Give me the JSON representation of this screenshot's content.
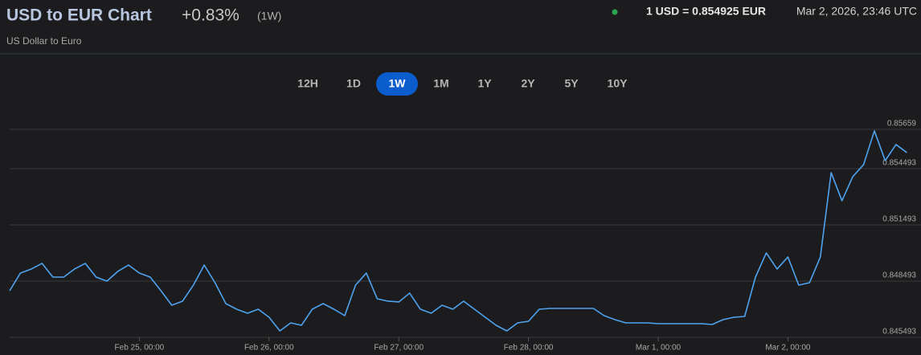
{
  "header": {
    "title": "USD to EUR Chart",
    "change": "+0.83%",
    "period": "(1W)",
    "subtitle": "US Dollar to Euro",
    "rate": "1 USD = 0.854925 EUR",
    "timestamp": "Mar 2, 2026, 23:46 UTC"
  },
  "ranges": [
    "12H",
    "1D",
    "1W",
    "1M",
    "1Y",
    "2Y",
    "5Y",
    "10Y"
  ],
  "selected_range": "1W",
  "chart_data": {
    "type": "line",
    "color": "#4ea3f0",
    "grid": true,
    "categories": [
      null,
      null,
      null,
      null,
      null,
      null,
      null,
      null,
      null,
      null,
      null,
      null,
      "Feb 25, 00:00",
      null,
      null,
      null,
      null,
      null,
      null,
      null,
      null,
      null,
      null,
      null,
      "Feb 26, 00:00",
      null,
      null,
      null,
      null,
      null,
      null,
      null,
      null,
      null,
      null,
      null,
      "Feb 27, 00:00",
      null,
      null,
      null,
      null,
      null,
      null,
      null,
      null,
      null,
      null,
      null,
      "Feb 28, 00:00",
      null,
      null,
      null,
      null,
      null,
      null,
      null,
      null,
      null,
      null,
      null,
      "Mar 1, 00:00",
      null,
      null,
      null,
      null,
      null,
      null,
      null,
      null,
      null,
      null,
      null,
      "Mar 2, 00:00",
      null,
      null,
      null,
      null,
      null,
      null,
      null,
      null,
      null,
      null,
      null
    ],
    "values": [
      0.847979,
      0.848922,
      0.849136,
      0.849436,
      0.848707,
      0.848707,
      0.849136,
      0.849436,
      0.848707,
      0.848493,
      0.849007,
      0.84935,
      0.848922,
      0.848707,
      0.847979,
      0.847207,
      0.847422,
      0.848279,
      0.84935,
      0.848407,
      0.847293,
      0.846993,
      0.846779,
      0.846993,
      0.846564,
      0.845836,
      0.846264,
      0.846136,
      0.846993,
      0.847293,
      0.846993,
      0.84665,
      0.848279,
      0.848922,
      0.84755,
      0.847422,
      0.847379,
      0.84785,
      0.846993,
      0.846779,
      0.847207,
      0.846993,
      0.847422,
      0.846993,
      0.846564,
      0.846136,
      0.845836,
      0.846264,
      0.84635,
      0.846993,
      0.847036,
      0.847036,
      0.847036,
      0.847036,
      0.847036,
      0.84665,
      0.846436,
      0.846264,
      0.846264,
      0.846264,
      0.846222,
      0.846222,
      0.846222,
      0.846222,
      0.846222,
      0.846179,
      0.846436,
      0.846564,
      0.846607,
      0.848707,
      0.849993,
      0.849136,
      0.849779,
      0.848279,
      0.848407,
      0.849779,
      0.854279,
      0.852779,
      0.854064,
      0.854707,
      0.856507,
      0.854922,
      0.855779,
      0.85535
    ],
    "ylim": [
      0.845493,
      0.85659
    ],
    "yticks": [
      0.845493,
      0.848493,
      0.851493,
      0.854493,
      0.85659
    ]
  }
}
